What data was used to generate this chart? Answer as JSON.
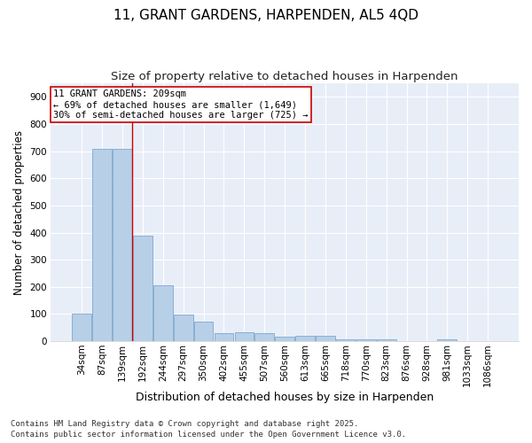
{
  "title": "11, GRANT GARDENS, HARPENDEN, AL5 4QD",
  "subtitle": "Size of property relative to detached houses in Harpenden",
  "xlabel": "Distribution of detached houses by size in Harpenden",
  "ylabel": "Number of detached properties",
  "categories": [
    "34sqm",
    "87sqm",
    "139sqm",
    "192sqm",
    "244sqm",
    "297sqm",
    "350sqm",
    "402sqm",
    "455sqm",
    "507sqm",
    "560sqm",
    "613sqm",
    "665sqm",
    "718sqm",
    "770sqm",
    "823sqm",
    "876sqm",
    "928sqm",
    "981sqm",
    "1033sqm",
    "1086sqm"
  ],
  "values": [
    100,
    710,
    710,
    390,
    207,
    97,
    72,
    30,
    32,
    30,
    18,
    20,
    20,
    8,
    8,
    7,
    0,
    0,
    7,
    0,
    0
  ],
  "bar_color": "#b8cfe8",
  "bar_edgecolor": "#6b9ec8",
  "vline_x_index": 2,
  "vline_color": "#cc0000",
  "annotation_text": "11 GRANT GARDENS: 209sqm\n← 69% of detached houses are smaller (1,649)\n30% of semi-detached houses are larger (725) →",
  "annotation_box_edgecolor": "#cc0000",
  "annotation_box_facecolor": "white",
  "ylim": [
    0,
    950
  ],
  "yticks": [
    0,
    100,
    200,
    300,
    400,
    500,
    600,
    700,
    800,
    900
  ],
  "bg_color": "#e8eef8",
  "grid_color": "#ffffff",
  "footer": "Contains HM Land Registry data © Crown copyright and database right 2025.\nContains public sector information licensed under the Open Government Licence v3.0.",
  "title_fontsize": 11,
  "subtitle_fontsize": 9.5,
  "xlabel_fontsize": 9,
  "ylabel_fontsize": 8.5,
  "tick_fontsize": 7.5,
  "footer_fontsize": 6.5
}
